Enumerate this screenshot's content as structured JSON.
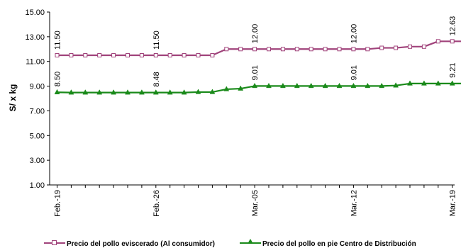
{
  "chart_data": {
    "type": "line",
    "ylabel": "S/ x kg",
    "ylim": [
      1.0,
      15.0
    ],
    "yticks": [
      "1.00",
      "3.00",
      "5.00",
      "7.00",
      "9.00",
      "11.00",
      "13.00",
      "15.00"
    ],
    "xticks": [
      "Feb.-19",
      "Feb.-26",
      "Mar.-05",
      "Mar.-12",
      "Mar.-19"
    ],
    "grid": false,
    "legend_position": "bottom",
    "series": [
      {
        "name": "Precio del pollo eviscerado (Al consumidor)",
        "color": "#A0437B",
        "marker": "square",
        "values": [
          11.5,
          11.5,
          11.5,
          11.5,
          11.5,
          11.5,
          11.5,
          11.5,
          11.5,
          11.5,
          11.5,
          11.5,
          12.0,
          12.0,
          12.0,
          12.0,
          12.0,
          12.0,
          12.0,
          12.0,
          12.0,
          12.0,
          12.0,
          12.1,
          12.1,
          12.2,
          12.2,
          12.63,
          12.63,
          12.63
        ],
        "data_labels": [
          {
            "index": 0,
            "text": "11.50"
          },
          {
            "index": 7,
            "text": "11.50"
          },
          {
            "index": 14,
            "text": "12.00"
          },
          {
            "index": 21,
            "text": "12.00"
          },
          {
            "index": 28,
            "text": "12.63"
          }
        ]
      },
      {
        "name": "Precio del pollo en pie Centro de Distribución",
        "color": "#1A8A1A",
        "marker": "triangle",
        "values": [
          8.5,
          8.48,
          8.48,
          8.48,
          8.48,
          8.48,
          8.48,
          8.48,
          8.48,
          8.48,
          8.52,
          8.52,
          8.75,
          8.8,
          9.01,
          9.01,
          9.01,
          9.01,
          9.01,
          9.01,
          9.01,
          9.01,
          9.01,
          9.01,
          9.05,
          9.21,
          9.21,
          9.21,
          9.21,
          9.21
        ],
        "data_labels": [
          {
            "index": 0,
            "text": "8.50"
          },
          {
            "index": 7,
            "text": "8.48"
          },
          {
            "index": 14,
            "text": "9.01"
          },
          {
            "index": 21,
            "text": "9.01"
          },
          {
            "index": 28,
            "text": "9.21"
          }
        ]
      }
    ]
  }
}
